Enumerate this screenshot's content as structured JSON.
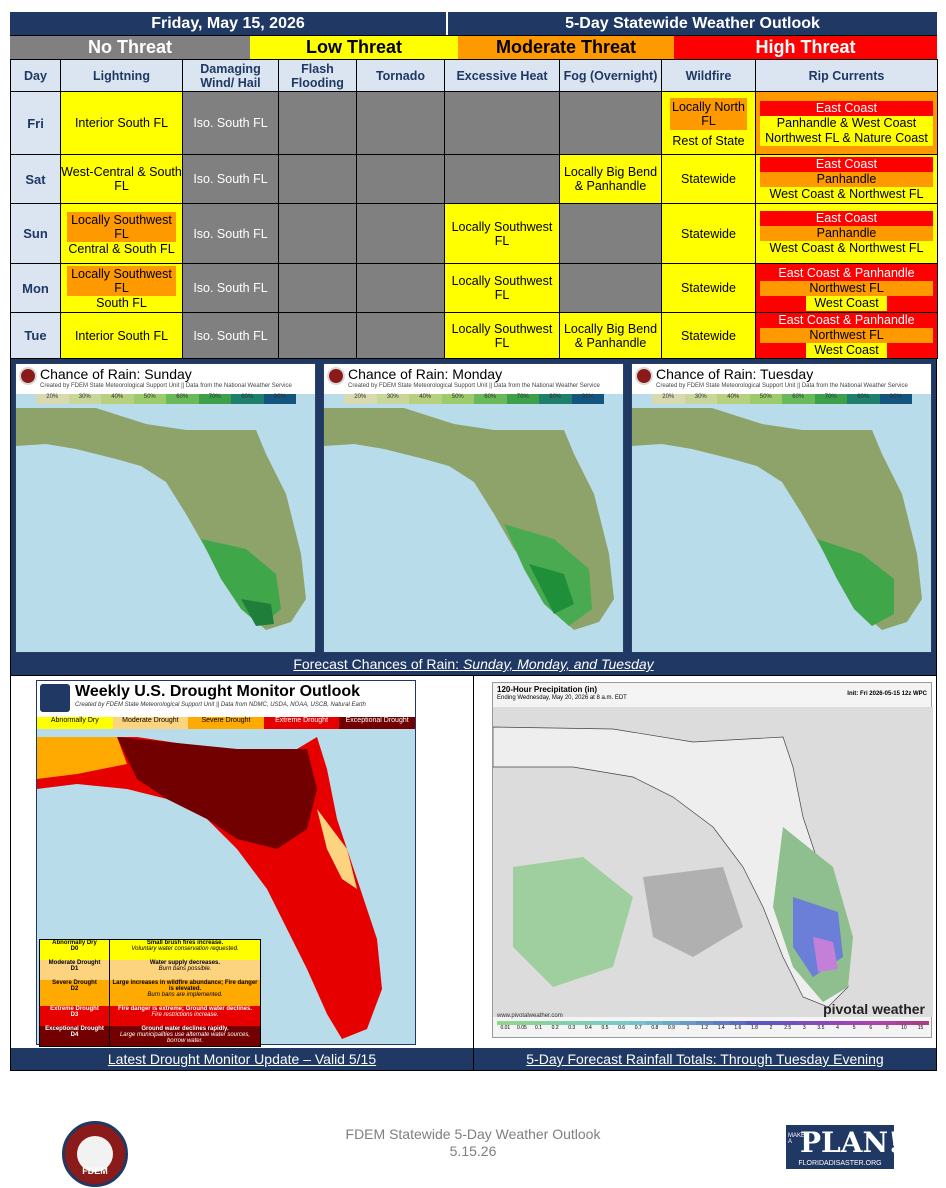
{
  "header": {
    "date": "Friday, May 15, 2026",
    "title": "5-Day Statewide Weather Outlook"
  },
  "legend": {
    "none": "No Threat",
    "low": "Low Threat",
    "moderate": "Moderate Threat",
    "high": "High Threat",
    "colors": {
      "none": "#808080",
      "low": "#ffff00",
      "moderate": "#ff9900",
      "high": "#ff0000"
    }
  },
  "columns": [
    "Day",
    "Lightning",
    "Damaging Wind/ Hail",
    "Flash Flooding",
    "Tornado",
    "Excessive Heat",
    "Fog (Overnight)",
    "Wildfire",
    "Rip Currents"
  ],
  "rows": {
    "fri": {
      "day": "Fri",
      "lightning": "Interior South FL",
      "wind": "Iso. South FL",
      "wildfire": [
        "Locally North FL",
        "Rest of State"
      ],
      "rip": [
        "East Coast",
        "Panhandle & West Coast",
        "Northwest FL & Nature Coast"
      ]
    },
    "sat": {
      "day": "Sat",
      "lightning": "West-Central & South FL",
      "wind": "Iso. South FL",
      "fog": "Locally Big Bend & Panhandle",
      "wildfire": "Statewide",
      "rip": [
        "East Coast",
        "Panhandle",
        "West Coast & Northwest FL"
      ]
    },
    "sun": {
      "day": "Sun",
      "lightning": [
        "Locally Southwest FL",
        "Central & South FL"
      ],
      "wind": "Iso. South FL",
      "heat": "Locally Southwest FL",
      "wildfire": "Statewide",
      "rip": [
        "East Coast",
        "Panhandle",
        "West Coast & Northwest FL"
      ]
    },
    "mon": {
      "day": "Mon",
      "lightning": [
        "Locally Southwest FL",
        "South FL"
      ],
      "wind": "Iso. South FL",
      "heat": "Locally Southwest FL",
      "wildfire": "Statewide",
      "rip": [
        "East Coast & Panhandle",
        "Northwest FL",
        "West Coast"
      ]
    },
    "tue": {
      "day": "Tue",
      "lightning": "Interior South FL",
      "wind": "Iso. South FL",
      "heat": "Locally Southwest FL",
      "fog": "Locally Big Bend & Panhandle",
      "wildfire": "Statewide",
      "rip": [
        "East Coast & Panhandle",
        "Northwest FL",
        "West Coast"
      ]
    }
  },
  "rain_maps": {
    "subtitle": "Created by FDEM State Meteorological Support Unit || Data from the National Weather Service",
    "scale": [
      "20%",
      "30%",
      "40%",
      "50%",
      "60%",
      "70%",
      "80%",
      "90%"
    ],
    "maps": [
      {
        "title": "Chance of Rain: Sunday"
      },
      {
        "title": "Chance of Rain: Monday"
      },
      {
        "title": "Chance of Rain: Tuesday"
      }
    ],
    "caption_prefix": "Forecast Chances of Rain:",
    "caption_days": "Sunday, Monday, and Tuesday"
  },
  "drought": {
    "title": "Weekly U.S. Drought Monitor Outlook",
    "subtitle": "Created by FDEM State Meteorological Support Unit || Data from NDMC, USDA, NOAA, USCB, Natural Earth",
    "categories": [
      "Abnormally Dry",
      "Moderate Drought",
      "Severe Drought",
      "Extreme Drought",
      "Exceptional Drought"
    ],
    "table": [
      {
        "name": "Abnormally Dry",
        "code": "D0",
        "impact": "Small brush fires increase.",
        "note": "Voluntary water conservation requested."
      },
      {
        "name": "Moderate Drought",
        "code": "D1",
        "impact": "Water supply decreases.",
        "note": "Burn bans possible."
      },
      {
        "name": "Severe Drought",
        "code": "D2",
        "impact": "Large increases in wildfire abundance; Fire danger is elevated.",
        "note": "Burn bans are implemented."
      },
      {
        "name": "Extreme Drought",
        "code": "D3",
        "impact": "Fire danger is extreme; Ground water declines.",
        "note": "Fire restrictions increase."
      },
      {
        "name": "Exceptional Drought",
        "code": "D4",
        "impact": "Ground water declines rapidly.",
        "note": "Large municipalities use alternate water sources, borrow water."
      }
    ],
    "caption": "Latest Drought Monitor Update – Valid 5/15"
  },
  "precip": {
    "title": "120-Hour Precipitation (in)",
    "subtitle": "Ending Wednesday, May 20, 2026 at 8 a.m. EDT",
    "init": "Init: Fri 2026-05-15 12z WPC",
    "url": "www.pivotalweather.com",
    "brand": "pivotal weather",
    "scale": [
      "0.01",
      "0.05",
      "0.1",
      "0.2",
      "0.3",
      "0.4",
      "0.5",
      "0.6",
      "0.7",
      "0.8",
      "0.9",
      "1",
      "1.2",
      "1.4",
      "1.6",
      "1.8",
      "2",
      "2.5",
      "3",
      "3.5",
      "4",
      "5",
      "6",
      "8",
      "10",
      "15"
    ],
    "caption": "5-Day Forecast Rainfall Totals: Through Tuesday Evening"
  },
  "footer": {
    "line1": "FDEM Statewide 5-Day Weather Outlook",
    "line2": "5.15.26",
    "fdem_label": "FDEM",
    "plan_text": "PLAN!",
    "plan_make": "MAKE A",
    "plan_url": "FLORIDADISASTER.ORG"
  }
}
